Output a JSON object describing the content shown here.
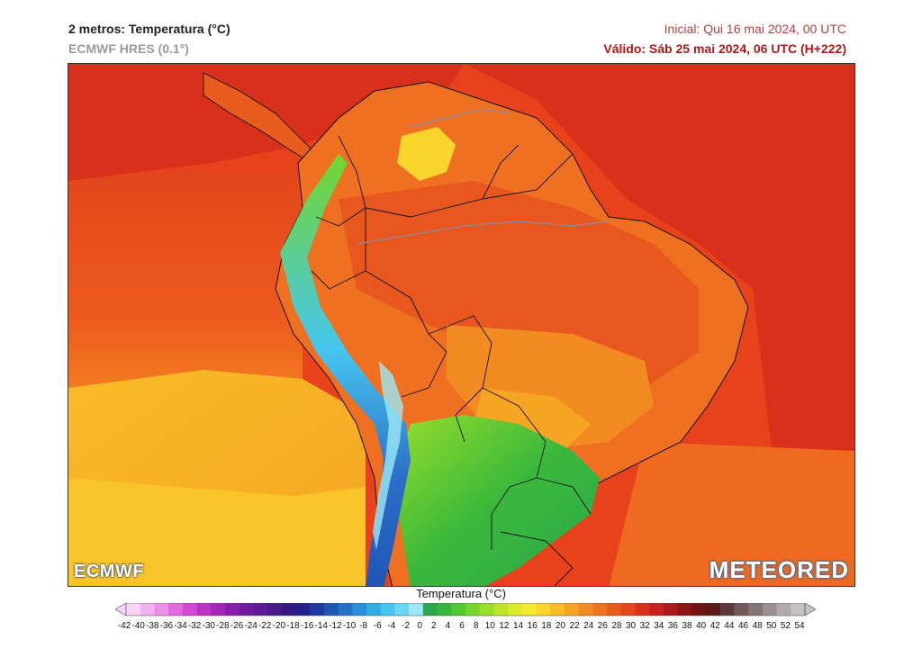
{
  "header": {
    "title": "2 metros: Temperatura (°C)",
    "model": "ECMWF HRES (0.1°)",
    "initial": "Inicial: Qui 16 mai 2024, 00 UTC",
    "valid": "Válido: Sáb 25 mai 2024, 06 UTC (H+222)"
  },
  "logos": {
    "left": "ECMWF",
    "right": "METEORED"
  },
  "colorbar": {
    "title": "Temperatura (°C)",
    "ticks": [
      "-42",
      "-40",
      "-38",
      "-36",
      "-34",
      "-32",
      "-30",
      "-28",
      "-26",
      "-24",
      "-22",
      "-20",
      "-18",
      "-16",
      "-14",
      "-12",
      "-10",
      "-8",
      "-6",
      "-4",
      "-2",
      "0",
      "2",
      "4",
      "6",
      "8",
      "10",
      "12",
      "14",
      "16",
      "18",
      "20",
      "22",
      "24",
      "26",
      "28",
      "30",
      "32",
      "34",
      "36",
      "38",
      "40",
      "42",
      "44",
      "46",
      "48",
      "50",
      "52",
      "54"
    ],
    "colors": [
      "#f9d4f9",
      "#f2b3f2",
      "#ea8fea",
      "#e06ce0",
      "#d24ad4",
      "#bd34c4",
      "#a426b8",
      "#8a1eac",
      "#721a9e",
      "#5c1a94",
      "#471a8a",
      "#321a82",
      "#24208c",
      "#1e3aa0",
      "#1e56b6",
      "#2272c8",
      "#2890d8",
      "#32aee4",
      "#46c6ee",
      "#6ad8f2",
      "#9ce8f6",
      "#2ca84a",
      "#3ab83c",
      "#52c832",
      "#74d62c",
      "#98de2a",
      "#bce42a",
      "#dcea2e",
      "#f4e830",
      "#f8d42c",
      "#f8bc28",
      "#f6a424",
      "#f28c22",
      "#ee7420",
      "#e85c1e",
      "#e2461c",
      "#d6321a",
      "#c4221a",
      "#aa1a1a",
      "#8c1616",
      "#701414",
      "#5a1a1a",
      "#5c3a3a",
      "#6e5a5a",
      "#847676",
      "#9a9090",
      "#b0aaaa",
      "#c6c2c2"
    ]
  }
}
